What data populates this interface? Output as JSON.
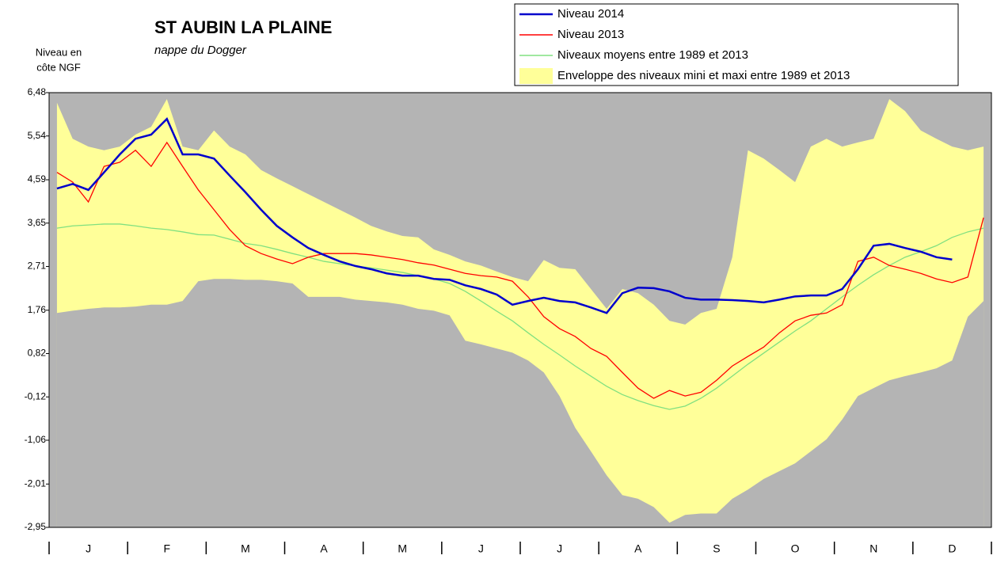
{
  "chart_data": {
    "type": "line",
    "title": "ST AUBIN LA PLAINE",
    "subtitle": "nappe du Dogger",
    "ylabel": [
      "Niveau en",
      "côte NGF"
    ],
    "categories": [
      null,
      null,
      "J",
      null,
      null,
      null,
      null,
      "F",
      null,
      null,
      null,
      null,
      "M",
      null,
      null,
      null,
      null,
      "A",
      null,
      null,
      null,
      null,
      "M",
      null,
      null,
      null,
      null,
      "J",
      null,
      null,
      null,
      null,
      "J",
      null,
      null,
      null,
      null,
      "A",
      null,
      null,
      null,
      null,
      "S",
      null,
      null,
      null,
      null,
      "O",
      null,
      null,
      null,
      null,
      "N",
      null,
      null,
      null,
      null,
      "D",
      null,
      null
    ],
    "ylim": [
      -2.95,
      6.48
    ],
    "yticks": [
      {
        "value": 6.48,
        "label": "6,48"
      },
      {
        "value": 5.54,
        "label": "5,54"
      },
      {
        "value": 4.59,
        "label": "4,59"
      },
      {
        "value": 3.65,
        "label": "3,65"
      },
      {
        "value": 2.71,
        "label": "2,71"
      },
      {
        "value": 1.76,
        "label": "1,76"
      },
      {
        "value": 0.82,
        "label": "0,82"
      },
      {
        "value": -0.12,
        "label": "-0,12"
      },
      {
        "value": -1.06,
        "label": "-1,06"
      },
      {
        "value": -2.01,
        "label": "-2,01"
      },
      {
        "value": -2.95,
        "label": "-2,95"
      }
    ],
    "grid": false,
    "background": "#b4b4b4",
    "series": [
      {
        "name": "Niveau 2014",
        "color": "#0000cc",
        "values": [
          4.4,
          4.5,
          4.37,
          4.75,
          5.14,
          5.48,
          5.57,
          5.91,
          5.14,
          5.14,
          5.05,
          4.68,
          4.32,
          3.94,
          3.59,
          3.34,
          3.11,
          2.96,
          2.82,
          2.72,
          2.65,
          2.56,
          2.51,
          2.51,
          2.44,
          2.42,
          2.3,
          2.22,
          2.1,
          1.88,
          1.96,
          2.03,
          1.96,
          1.93,
          1.82,
          1.7,
          2.13,
          2.25,
          2.24,
          2.17,
          2.03,
          1.99,
          1.99,
          1.98,
          1.96,
          1.93,
          1.99,
          2.06,
          2.08,
          2.08,
          2.22,
          2.65,
          3.16,
          3.2,
          3.11,
          3.03,
          2.91,
          2.86,
          null,
          null
        ]
      },
      {
        "name": "Niveau 2013",
        "color": "#ff0000",
        "values": [
          4.75,
          4.54,
          4.11,
          4.88,
          4.97,
          5.23,
          4.88,
          5.4,
          4.88,
          4.37,
          3.94,
          3.51,
          3.16,
          2.99,
          2.87,
          2.77,
          2.91,
          2.99,
          2.99,
          2.99,
          2.96,
          2.91,
          2.86,
          2.79,
          2.74,
          2.65,
          2.56,
          2.51,
          2.48,
          2.39,
          2.05,
          1.62,
          1.36,
          1.19,
          0.93,
          0.76,
          0.41,
          0.07,
          -0.15,
          0.02,
          -0.1,
          -0.02,
          0.24,
          0.55,
          0.76,
          0.96,
          1.27,
          1.53,
          1.65,
          1.7,
          1.88,
          2.82,
          2.91,
          2.73,
          2.65,
          2.56,
          2.44,
          2.36,
          2.48,
          3.77
        ]
      },
      {
        "name": "Niveaux moyens entre 1989 et 2013",
        "color": "#80e080",
        "values": [
          3.54,
          3.59,
          3.61,
          3.63,
          3.63,
          3.59,
          3.54,
          3.51,
          3.46,
          3.4,
          3.39,
          3.3,
          3.21,
          3.16,
          3.08,
          2.99,
          2.91,
          2.82,
          2.77,
          2.72,
          2.68,
          2.63,
          2.58,
          2.51,
          2.44,
          2.34,
          2.17,
          1.96,
          1.74,
          1.53,
          1.27,
          1.02,
          0.79,
          0.55,
          0.33,
          0.11,
          -0.07,
          -0.2,
          -0.31,
          -0.39,
          -0.32,
          -0.15,
          0.07,
          0.33,
          0.59,
          0.83,
          1.07,
          1.31,
          1.53,
          1.79,
          2.05,
          2.3,
          2.53,
          2.73,
          2.91,
          3.03,
          3.16,
          3.34,
          3.46,
          3.54
        ]
      }
    ],
    "envelope": {
      "name": "Enveloppe des niveaux mini et maxi entre 1989 et 2013",
      "color": "#ffff99",
      "max": [
        6.26,
        5.48,
        5.31,
        5.23,
        5.31,
        5.57,
        5.74,
        6.34,
        5.31,
        5.23,
        5.66,
        5.31,
        5.14,
        4.8,
        4.62,
        4.45,
        4.28,
        4.11,
        3.94,
        3.77,
        3.59,
        3.47,
        3.37,
        3.34,
        3.08,
        2.96,
        2.82,
        2.73,
        2.6,
        2.48,
        2.39,
        2.85,
        2.68,
        2.65,
        2.22,
        1.79,
        2.22,
        2.13,
        1.88,
        1.53,
        1.45,
        1.7,
        1.79,
        2.91,
        5.23,
        5.05,
        4.8,
        4.54,
        5.31,
        5.48,
        5.31,
        5.4,
        5.48,
        6.34,
        6.08,
        5.66,
        5.48,
        5.31,
        5.23,
        5.31
      ],
      "min": [
        1.7,
        1.75,
        1.79,
        1.82,
        1.82,
        1.84,
        1.88,
        1.88,
        1.96,
        2.39,
        2.44,
        2.44,
        2.42,
        2.42,
        2.39,
        2.34,
        2.05,
        2.05,
        2.05,
        1.99,
        1.96,
        1.93,
        1.88,
        1.79,
        1.75,
        1.65,
        1.1,
        1.02,
        0.93,
        0.84,
        0.67,
        0.41,
        -0.1,
        -0.79,
        -1.3,
        -1.82,
        -2.25,
        -2.33,
        -2.51,
        -2.85,
        -2.68,
        -2.65,
        -2.65,
        -2.33,
        -2.13,
        -1.9,
        -1.73,
        -1.56,
        -1.3,
        -1.04,
        -0.61,
        -0.1,
        0.07,
        0.24,
        0.33,
        0.41,
        0.5,
        0.67,
        1.62,
        1.96
      ]
    }
  }
}
